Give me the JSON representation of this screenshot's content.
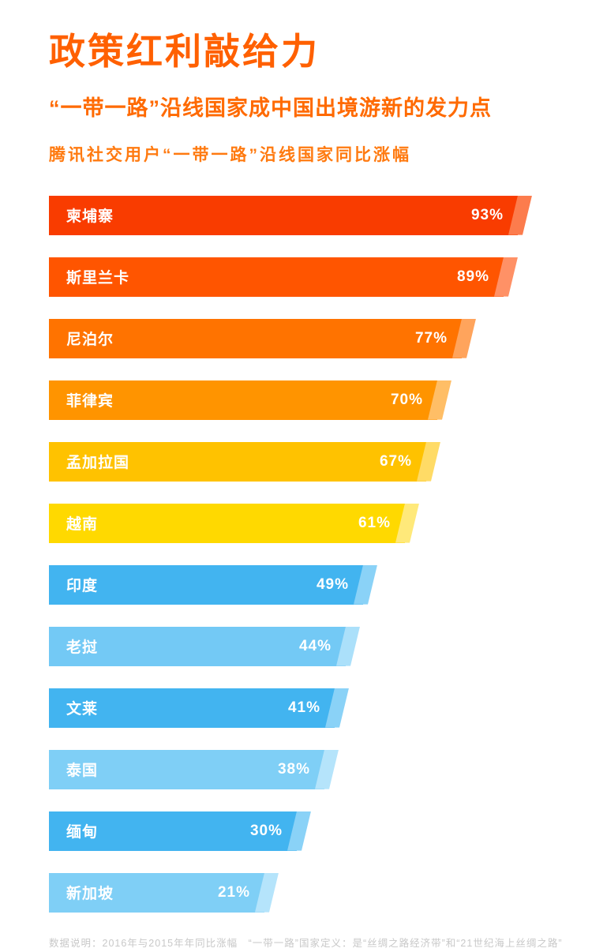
{
  "header": {
    "title": "政策红利敲给力",
    "subtitle": "“一带一路”沿线国家成中国出境游新的发力点",
    "caption": "腾讯社交用户“一带一路”沿线国家同比涨幅"
  },
  "chart_data": {
    "type": "bar",
    "orientation": "horizontal",
    "title": "腾讯社交用户“一带一路”沿线国家同比涨幅",
    "xlabel": "",
    "ylabel": "",
    "xlim": [
      0,
      100
    ],
    "grid": false,
    "legend": "none",
    "categories": [
      "柬埔寨",
      "斯里兰卡",
      "尼泊尔",
      "菲律宾",
      "孟加拉国",
      "越南",
      "印度",
      "老挝",
      "文莱",
      "泰国",
      "缅甸",
      "新加坡"
    ],
    "values": [
      93,
      89,
      77,
      70,
      67,
      61,
      49,
      44,
      41,
      38,
      30,
      21
    ],
    "value_labels": [
      "93%",
      "89%",
      "77%",
      "70%",
      "67%",
      "61%",
      "49%",
      "44%",
      "41%",
      "38%",
      "30%",
      "21%"
    ],
    "bar_colors": [
      "#f93c00",
      "#ff5500",
      "#ff7300",
      "#ff9400",
      "#ffc200",
      "#ffd900",
      "#42b4f0",
      "#73c9f5",
      "#42b4f0",
      "#7fcff6",
      "#42b4f0",
      "#7fcff6"
    ],
    "bar_side_colors": [
      "#fc7c4d",
      "#ff9166",
      "#ffa45c",
      "#ffbe66",
      "#ffdb66",
      "#ffe97a",
      "#8ad2f7",
      "#abe0fa",
      "#8ad2f7",
      "#b5e4fb",
      "#8ad2f7",
      "#b5e4fb"
    ]
  },
  "footer": {
    "note": "数据说明：2016年与2015年年同比涨幅　“一带一路”国家定义：是“丝绸之路经济带”和“21世纪海上丝绸之路”"
  }
}
